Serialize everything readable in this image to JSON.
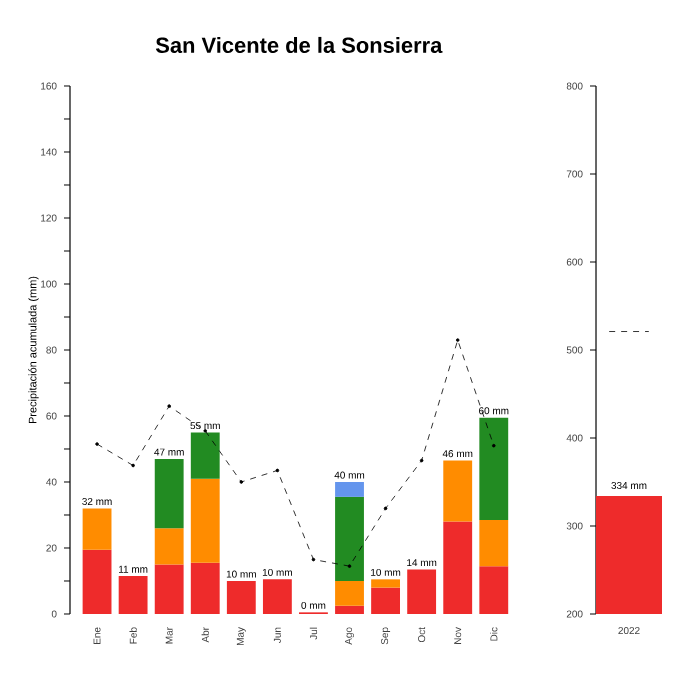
{
  "chart_data": [
    {
      "type": "bar",
      "title": "San Vicente de la Sonsierra",
      "ylabel": "Precipitación acumulada (mm)",
      "stacked": true,
      "categories": [
        "Ene",
        "Feb",
        "Mar",
        "Abr",
        "May",
        "Jun",
        "Jul",
        "Ago",
        "Sep",
        "Oct",
        "Nov",
        "Dic"
      ],
      "series": [
        {
          "color": "#ee2b2b",
          "values": [
            19.5,
            11.5,
            15,
            15.5,
            10,
            10.5,
            0.5,
            2.5,
            8,
            13.5,
            28,
            14.5
          ]
        },
        {
          "color": "#ff8c00",
          "values": [
            12.5,
            null,
            11,
            25.5,
            null,
            null,
            null,
            7.5,
            2.5,
            null,
            18.5,
            14
          ]
        },
        {
          "color": "#228b22",
          "values": [
            null,
            null,
            21,
            14,
            null,
            null,
            null,
            25.5,
            null,
            null,
            null,
            31
          ]
        },
        {
          "color": "#6495ed",
          "values": [
            null,
            null,
            null,
            null,
            null,
            null,
            null,
            4.5,
            null,
            null,
            null,
            null
          ]
        },
        {
          "type": "line",
          "color": "#000000",
          "marker": "circle",
          "line_style": "dashed",
          "values": [
            51.5,
            45,
            63,
            55.5,
            40,
            43.5,
            16.5,
            14.5,
            32,
            46.5,
            83,
            51
          ]
        }
      ],
      "totals": [
        "32 mm",
        "11 mm",
        "47 mm",
        "55 mm",
        "10 mm",
        "10 mm",
        "0 mm",
        "40 mm",
        "10 mm",
        "14 mm",
        "46 mm",
        "60 mm"
      ],
      "ylim": [
        0,
        160
      ],
      "yticks": [
        0,
        {
          "value": 10,
          "label": null
        },
        20,
        {
          "value": 30,
          "label": null
        },
        40,
        {
          "value": 50,
          "label": null
        },
        60,
        {
          "value": 70,
          "label": null
        },
        80,
        {
          "value": 90,
          "label": null
        },
        100,
        {
          "value": 110,
          "label": null
        },
        120,
        {
          "value": 130,
          "label": null
        },
        140,
        {
          "value": 150,
          "label": null
        },
        160
      ]
    },
    {
      "type": "bar",
      "categories": [
        "2022"
      ],
      "series": [
        {
          "color": "#ee2b2b",
          "values": [
            334
          ],
          "value_labels": [
            "334 mm"
          ]
        }
      ],
      "ref_lines": [
        {
          "axis": "y",
          "value": 521,
          "color": "#000000",
          "line_style": "dashed"
        }
      ],
      "ylim": [
        200,
        800
      ],
      "yticks": [
        200,
        300,
        400,
        500,
        600,
        700,
        800
      ]
    }
  ]
}
